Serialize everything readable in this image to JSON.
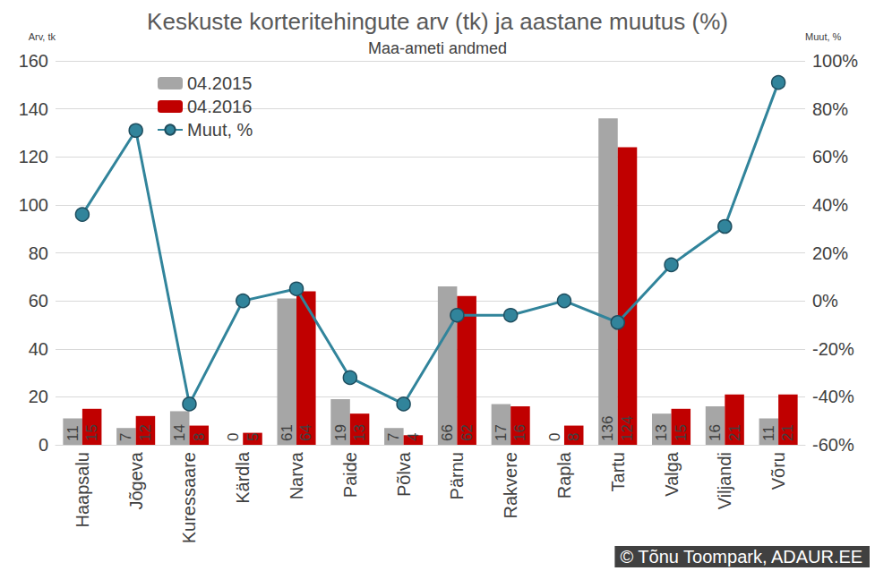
{
  "chart_data": {
    "type": "bar",
    "title": "Keskuste korteritehingute arv (tk) ja aastane muutus (%)",
    "subtitle": "Maa-ameti andmed",
    "y_label": "Arv, tk",
    "y2_label": "Muut, %",
    "source": "© Tõnu Toompark, ADAUR.EE",
    "categories": [
      "Haapsalu",
      "Jõgeva",
      "Kuressaare",
      "Kärdla",
      "Narva",
      "Paide",
      "Põlva",
      "Pärnu",
      "Rakvere",
      "Rapla",
      "Tartu",
      "Valga",
      "Viljandi",
      "Võru"
    ],
    "series": [
      {
        "name": "04.2015",
        "type": "bar",
        "color": "#a6a6a6",
        "data_labels": true,
        "values": [
          11,
          7,
          14,
          0,
          61,
          19,
          7,
          66,
          17,
          0,
          136,
          13,
          16,
          11
        ]
      },
      {
        "name": "04.2016",
        "type": "bar",
        "color": "#c00000",
        "data_labels": true,
        "values": [
          15,
          12,
          8,
          5,
          64,
          13,
          4,
          62,
          16,
          8,
          124,
          15,
          21,
          21
        ]
      },
      {
        "name": "Muut, %",
        "type": "line",
        "axis": "y2",
        "color": "#31849b",
        "marker": "circle",
        "values": [
          36,
          71,
          -43,
          0,
          5,
          -32,
          -43,
          -6,
          -6,
          0,
          -9,
          15,
          31,
          91
        ]
      }
    ],
    "ylim": [
      0,
      160
    ],
    "yticks": [
      0,
      20,
      40,
      60,
      80,
      100,
      120,
      140,
      160
    ],
    "y2lim": [
      -60,
      100
    ],
    "y2ticks": [
      {
        "value": -60,
        "label": "-60%"
      },
      {
        "value": -40,
        "label": "-40%"
      },
      {
        "value": -20,
        "label": "-20%"
      },
      {
        "value": 0,
        "label": "0%"
      },
      {
        "value": 20,
        "label": "20%"
      },
      {
        "value": 40,
        "label": "40%"
      },
      {
        "value": 60,
        "label": "60%"
      },
      {
        "value": 80,
        "label": "80%"
      },
      {
        "value": 100,
        "label": "100%"
      }
    ],
    "grid": true,
    "legend": "upper left"
  }
}
